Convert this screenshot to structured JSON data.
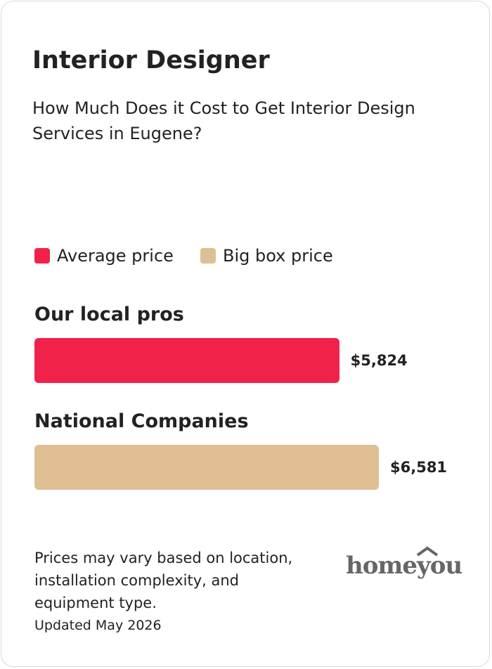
{
  "chart_data": {
    "type": "bar",
    "orientation": "horizontal",
    "title": "Interior Designer",
    "subtitle": "How Much Does it Cost to Get Interior Design Services in Eugene?",
    "categories": [
      "Our local pros",
      "National Companies"
    ],
    "series": [
      {
        "name": "Average price",
        "color": "#f0224a",
        "values": [
          5824,
          null
        ],
        "value_labels": [
          "$5,824",
          null
        ]
      },
      {
        "name": "Big box price",
        "color": "#dfbf92",
        "values": [
          null,
          6581
        ],
        "value_labels": [
          null,
          "$6,581"
        ]
      }
    ],
    "note": "Prices may vary based on location, installation complexity, and equipment type.",
    "updated": "Updated May 2026",
    "brand": "homeyou"
  }
}
